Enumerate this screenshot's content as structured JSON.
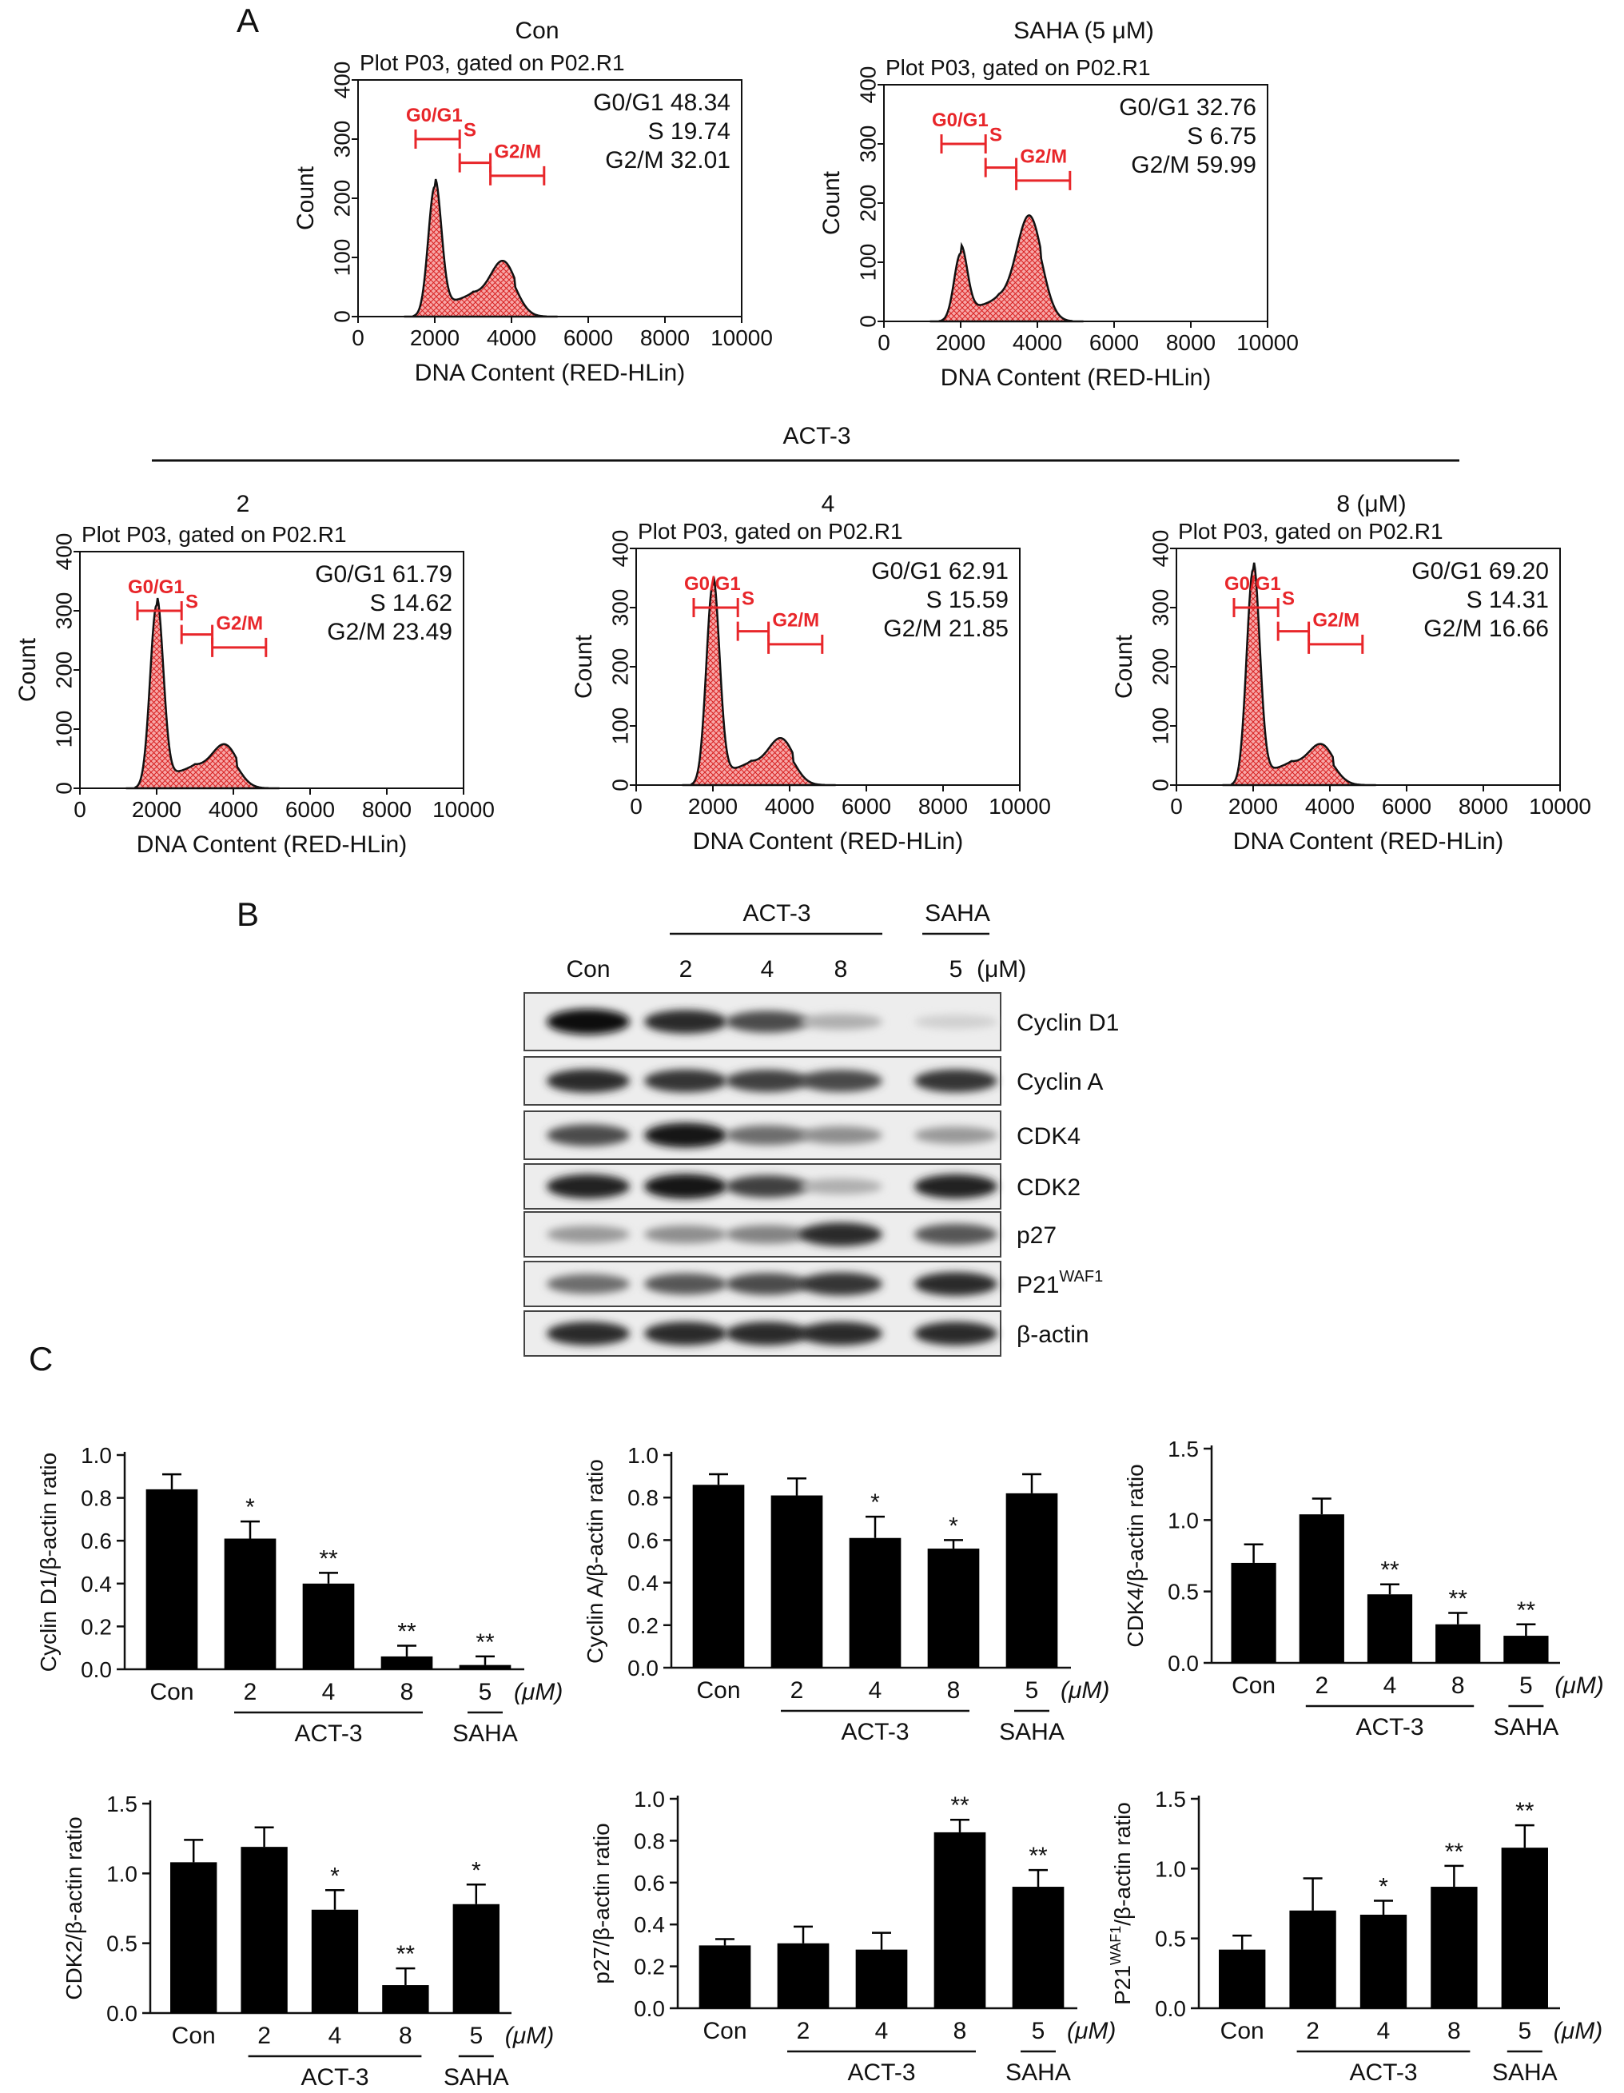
{
  "panel_labels": {
    "a": "A",
    "b": "B",
    "c": "C"
  },
  "flow": {
    "gate_text": "Plot P03, gated on P02.R1",
    "xlabel": "DNA Content (RED-HLin)",
    "ylabel": "Count",
    "x_ticks": [
      "0",
      "2000",
      "4000",
      "6000",
      "8000",
      "10000"
    ],
    "y_ticks": [
      "0",
      "100",
      "200",
      "300",
      "400"
    ],
    "phase_markers": [
      "G0/G1",
      "S",
      "G2/M"
    ],
    "group_label": "ACT-3",
    "marker_color": "#e8262a",
    "fill_color": "#f08a8a",
    "panels": [
      {
        "title": "Con",
        "stats": [
          "G0/G1 48.34",
          "S 19.74",
          "G2/M 32.01"
        ],
        "g1_peak": 220,
        "g2_peak": 75
      },
      {
        "title": "SAHA (5 μM)",
        "stats": [
          "G0/G1 32.76",
          "S 6.75",
          "G2/M 59.99"
        ],
        "g1_peak": 115,
        "g2_peak": 160
      },
      {
        "title": "2",
        "stats": [
          "G0/G1 61.79",
          "S 14.62",
          "G2/M 23.49"
        ],
        "g1_peak": 310,
        "g2_peak": 55
      },
      {
        "title": "4",
        "stats": [
          "G0/G1 62.91",
          "S 15.59",
          "G2/M 21.85"
        ],
        "g1_peak": 340,
        "g2_peak": 60
      },
      {
        "title": "8 (μM)",
        "stats": [
          "G0/G1 69.20",
          "S 14.31",
          "G2/M 16.66"
        ],
        "g1_peak": 365,
        "g2_peak": 50
      }
    ]
  },
  "western": {
    "group_act": "ACT-3",
    "group_saha": "SAHA",
    "lanes": [
      "Con",
      "2",
      "4",
      "8",
      "5"
    ],
    "unit": "(μM)",
    "bands": [
      {
        "label": "Cyclin D1",
        "intensity": [
          1.0,
          0.85,
          0.7,
          0.25,
          0.1
        ]
      },
      {
        "label": "Cyclin A",
        "intensity": [
          0.85,
          0.8,
          0.75,
          0.72,
          0.8
        ]
      },
      {
        "label": "CDK4",
        "intensity": [
          0.7,
          0.95,
          0.55,
          0.4,
          0.35
        ]
      },
      {
        "label": "CDK2",
        "intensity": [
          0.9,
          0.95,
          0.75,
          0.25,
          0.9
        ]
      },
      {
        "label": "p27",
        "intensity": [
          0.35,
          0.4,
          0.45,
          0.85,
          0.65
        ]
      },
      {
        "label": "P21",
        "label_sup": "WAF1",
        "intensity": [
          0.55,
          0.65,
          0.7,
          0.8,
          0.85
        ]
      },
      {
        "label": "β-actin",
        "intensity": [
          0.85,
          0.85,
          0.85,
          0.85,
          0.85
        ]
      }
    ]
  },
  "chart_data": [
    {
      "type": "bar",
      "categories": [
        "Con",
        "2",
        "4",
        "8",
        "5"
      ],
      "values": [
        0.84,
        0.61,
        0.4,
        0.06,
        0.02
      ],
      "errors": [
        0.07,
        0.08,
        0.05,
        0.05,
        0.04
      ],
      "significance": [
        "",
        "*",
        "**",
        "**",
        "**"
      ],
      "ylabel": "Cyclin D1/β-actin ratio",
      "ylim": [
        0,
        1.0
      ],
      "y_ticks": [
        "0.0",
        "0.2",
        "0.4",
        "0.6",
        "0.8",
        "1.0"
      ],
      "group_labels": [
        "ACT-3",
        "SAHA"
      ],
      "unit": "(μM)"
    },
    {
      "type": "bar",
      "categories": [
        "Con",
        "2",
        "4",
        "8",
        "5"
      ],
      "values": [
        0.86,
        0.81,
        0.61,
        0.56,
        0.82
      ],
      "errors": [
        0.05,
        0.08,
        0.1,
        0.04,
        0.09
      ],
      "significance": [
        "",
        "",
        "*",
        "*",
        ""
      ],
      "ylabel": "Cyclin A/β-actin ratio",
      "ylim": [
        0,
        1.0
      ],
      "y_ticks": [
        "0.0",
        "0.2",
        "0.4",
        "0.6",
        "0.8",
        "1.0"
      ],
      "group_labels": [
        "ACT-3",
        "SAHA"
      ],
      "unit": "(μM)"
    },
    {
      "type": "bar",
      "categories": [
        "Con",
        "2",
        "4",
        "8",
        "5"
      ],
      "values": [
        0.7,
        1.04,
        0.48,
        0.27,
        0.19
      ],
      "errors": [
        0.13,
        0.11,
        0.07,
        0.08,
        0.08
      ],
      "significance": [
        "",
        "",
        "**",
        "**",
        "**"
      ],
      "ylabel": "CDK4/β-actin ratio",
      "ylim": [
        0,
        1.5
      ],
      "y_ticks": [
        "0.0",
        "0.5",
        "1.0",
        "1.5"
      ],
      "group_labels": [
        "ACT-3",
        "SAHA"
      ],
      "unit": "(μM)"
    },
    {
      "type": "bar",
      "categories": [
        "Con",
        "2",
        "4",
        "8",
        "5"
      ],
      "values": [
        1.08,
        1.19,
        0.74,
        0.2,
        0.78
      ],
      "errors": [
        0.16,
        0.14,
        0.14,
        0.12,
        0.14
      ],
      "significance": [
        "",
        "",
        "*",
        "**",
        "*"
      ],
      "ylabel": "CDK2/β-actin ratio",
      "ylim": [
        0,
        1.5
      ],
      "y_ticks": [
        "0.0",
        "0.5",
        "1.0",
        "1.5"
      ],
      "group_labels": [
        "ACT-3",
        "SAHA"
      ],
      "unit": "(μM)"
    },
    {
      "type": "bar",
      "categories": [
        "Con",
        "2",
        "4",
        "8",
        "5"
      ],
      "values": [
        0.3,
        0.31,
        0.28,
        0.84,
        0.58
      ],
      "errors": [
        0.03,
        0.08,
        0.08,
        0.06,
        0.08
      ],
      "significance": [
        "",
        "",
        "",
        "**",
        "**"
      ],
      "ylabel": "p27/β-actin ratio",
      "ylim": [
        0,
        1.0
      ],
      "y_ticks": [
        "0.0",
        "0.2",
        "0.4",
        "0.6",
        "0.8",
        "1.0"
      ],
      "group_labels": [
        "ACT-3",
        "SAHA"
      ],
      "unit": "(μM)"
    },
    {
      "type": "bar",
      "categories": [
        "Con",
        "2",
        "4",
        "8",
        "5"
      ],
      "values": [
        0.42,
        0.7,
        0.67,
        0.87,
        1.15
      ],
      "errors": [
        0.1,
        0.23,
        0.1,
        0.15,
        0.16
      ],
      "significance": [
        "",
        "",
        "*",
        "**",
        "**"
      ],
      "ylabel": "P21/β-actin ratio",
      "ylabel_sup": "WAF1",
      "ylim": [
        0,
        1.5
      ],
      "y_ticks": [
        "0.0",
        "0.5",
        "1.0",
        "1.5"
      ],
      "group_labels": [
        "ACT-3",
        "SAHA"
      ],
      "unit": "(μM)"
    }
  ]
}
